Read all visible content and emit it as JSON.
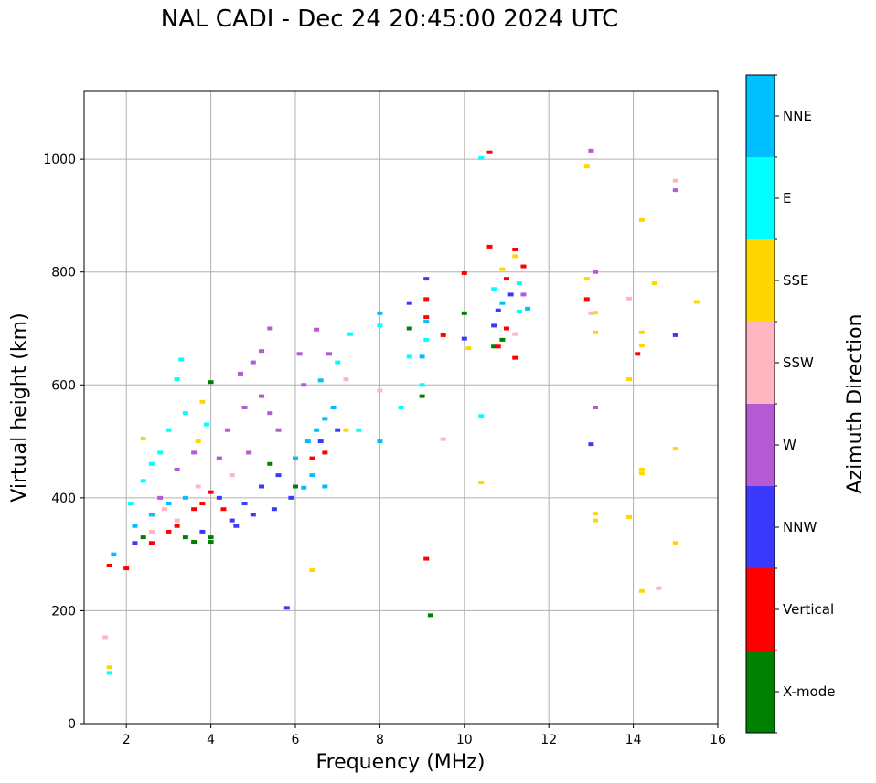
{
  "chart_data": {
    "type": "scatter",
    "title": "NAL CADI - Dec 24 20:45:00 2024 UTC",
    "xlabel": "Frequency (MHz)",
    "ylabel": "Virtual height (km)",
    "xlim": [
      1,
      16
    ],
    "ylim": [
      0,
      1120
    ],
    "xticks": [
      2,
      4,
      6,
      8,
      10,
      12,
      14,
      16
    ],
    "yticks": [
      0,
      200,
      400,
      600,
      800,
      1000
    ],
    "grid": true,
    "colorbar": {
      "label": "Azimuth Direction",
      "categories": [
        {
          "name": "X-mode",
          "color": "#008000"
        },
        {
          "name": "Vertical",
          "color": "#ff0000"
        },
        {
          "name": "NNW",
          "color": "#3a3aff"
        },
        {
          "name": "W",
          "color": "#b45ad2"
        },
        {
          "name": "SSW",
          "color": "#ffb6c1"
        },
        {
          "name": "SSE",
          "color": "#ffd700"
        },
        {
          "name": "E",
          "color": "#00ffff"
        },
        {
          "name": "NNE",
          "color": "#00bfff"
        }
      ]
    },
    "series": [
      {
        "name": "X-mode",
        "points": [
          [
            9.2,
            192
          ],
          [
            4.0,
            605
          ],
          [
            4.0,
            322
          ],
          [
            4.0,
            330
          ],
          [
            10.7,
            668
          ],
          [
            10.0,
            727
          ],
          [
            8.7,
            700
          ],
          [
            3.4,
            330
          ],
          [
            3.6,
            322
          ],
          [
            2.4,
            330
          ],
          [
            9.0,
            580
          ],
          [
            10.9,
            680
          ],
          [
            5.4,
            460
          ],
          [
            6.0,
            420
          ]
        ]
      },
      {
        "name": "Vertical",
        "points": [
          [
            10.6,
            1012
          ],
          [
            10.6,
            845
          ],
          [
            11.4,
            810
          ],
          [
            11.0,
            788
          ],
          [
            12.9,
            752
          ],
          [
            11.0,
            700
          ],
          [
            10.8,
            668
          ],
          [
            11.2,
            648
          ],
          [
            14.1,
            655
          ],
          [
            9.1,
            752
          ],
          [
            9.1,
            720
          ],
          [
            9.5,
            688
          ],
          [
            9.1,
            292
          ],
          [
            4.0,
            410
          ],
          [
            4.3,
            380
          ],
          [
            3.8,
            390
          ],
          [
            2.0,
            275
          ],
          [
            1.6,
            280
          ],
          [
            2.6,
            320
          ],
          [
            3.0,
            340
          ],
          [
            3.2,
            350
          ],
          [
            6.4,
            470
          ],
          [
            6.7,
            480
          ],
          [
            11.2,
            840
          ],
          [
            10.0,
            798
          ],
          [
            3.6,
            380
          ]
        ]
      },
      {
        "name": "NNW",
        "points": [
          [
            5.8,
            205
          ],
          [
            10.0,
            682
          ],
          [
            10.7,
            705
          ],
          [
            10.8,
            732
          ],
          [
            11.1,
            760
          ],
          [
            15.0,
            688
          ],
          [
            13.0,
            495
          ],
          [
            9.1,
            788
          ],
          [
            8.7,
            745
          ],
          [
            5.5,
            380
          ],
          [
            5.0,
            370
          ],
          [
            4.5,
            360
          ],
          [
            4.8,
            390
          ],
          [
            5.2,
            420
          ],
          [
            4.2,
            400
          ],
          [
            5.6,
            440
          ],
          [
            6.6,
            500
          ],
          [
            7.0,
            520
          ],
          [
            3.8,
            340
          ],
          [
            2.2,
            320
          ],
          [
            4.6,
            350
          ],
          [
            5.9,
            400
          ]
        ]
      },
      {
        "name": "W",
        "points": [
          [
            13.1,
            800
          ],
          [
            13.1,
            560
          ],
          [
            15.0,
            945
          ],
          [
            13.0,
            1015
          ],
          [
            11.4,
            760
          ],
          [
            6.5,
            698
          ],
          [
            5.4,
            700
          ],
          [
            5.2,
            660
          ],
          [
            5.0,
            640
          ],
          [
            4.7,
            620
          ],
          [
            6.8,
            655
          ],
          [
            6.1,
            655
          ],
          [
            4.8,
            560
          ],
          [
            4.4,
            520
          ],
          [
            5.6,
            520
          ],
          [
            3.6,
            480
          ],
          [
            3.2,
            450
          ],
          [
            5.2,
            580
          ],
          [
            4.2,
            470
          ],
          [
            2.8,
            400
          ],
          [
            4.9,
            480
          ],
          [
            5.4,
            550
          ],
          [
            6.2,
            600
          ]
        ]
      },
      {
        "name": "SSW",
        "points": [
          [
            15.0,
            962
          ],
          [
            14.6,
            240
          ],
          [
            9.5,
            504
          ],
          [
            13.9,
            753
          ],
          [
            13.0,
            727
          ],
          [
            11.2,
            690
          ],
          [
            1.5,
            153
          ],
          [
            2.6,
            340
          ],
          [
            3.2,
            360
          ],
          [
            7.2,
            610
          ],
          [
            8.0,
            590
          ],
          [
            2.9,
            380
          ],
          [
            3.7,
            420
          ],
          [
            4.5,
            440
          ]
        ]
      },
      {
        "name": "SSE",
        "points": [
          [
            12.9,
            987
          ],
          [
            14.2,
            892
          ],
          [
            14.5,
            780
          ],
          [
            15.5,
            747
          ],
          [
            13.1,
            728
          ],
          [
            12.9,
            788
          ],
          [
            13.1,
            693
          ],
          [
            14.2,
            693
          ],
          [
            14.2,
            670
          ],
          [
            13.9,
            610
          ],
          [
            15.0,
            487
          ],
          [
            14.2,
            450
          ],
          [
            14.2,
            443
          ],
          [
            13.1,
            372
          ],
          [
            13.1,
            360
          ],
          [
            13.9,
            366
          ],
          [
            15.0,
            320
          ],
          [
            14.2,
            235
          ],
          [
            10.4,
            427
          ],
          [
            6.4,
            272
          ],
          [
            1.6,
            100
          ],
          [
            11.2,
            828
          ],
          [
            10.9,
            805
          ],
          [
            10.1,
            665
          ],
          [
            3.8,
            570
          ],
          [
            3.7,
            500
          ],
          [
            2.4,
            505
          ],
          [
            7.2,
            520
          ]
        ]
      },
      {
        "name": "E",
        "points": [
          [
            10.4,
            1002
          ],
          [
            10.4,
            545
          ],
          [
            8.5,
            560
          ],
          [
            8.7,
            650
          ],
          [
            9.0,
            600
          ],
          [
            9.1,
            680
          ],
          [
            11.3,
            730
          ],
          [
            10.7,
            770
          ],
          [
            11.3,
            780
          ],
          [
            3.3,
            645
          ],
          [
            3.2,
            610
          ],
          [
            3.4,
            550
          ],
          [
            3.0,
            520
          ],
          [
            2.8,
            480
          ],
          [
            2.6,
            460
          ],
          [
            2.4,
            430
          ],
          [
            3.9,
            530
          ],
          [
            2.1,
            390
          ],
          [
            1.6,
            90
          ],
          [
            7.3,
            690
          ],
          [
            7.0,
            640
          ],
          [
            8.0,
            705
          ],
          [
            7.5,
            520
          ]
        ]
      },
      {
        "name": "NNE",
        "points": [
          [
            9.1,
            712
          ],
          [
            8.0,
            727
          ],
          [
            8.0,
            500
          ],
          [
            6.9,
            560
          ],
          [
            6.7,
            540
          ],
          [
            6.5,
            520
          ],
          [
            6.3,
            500
          ],
          [
            6.7,
            420
          ],
          [
            6.4,
            440
          ],
          [
            6.0,
            470
          ],
          [
            6.6,
            608
          ],
          [
            9.0,
            650
          ],
          [
            10.9,
            745
          ],
          [
            11.5,
            735
          ],
          [
            1.7,
            300
          ],
          [
            2.2,
            350
          ],
          [
            2.6,
            370
          ],
          [
            3.0,
            390
          ],
          [
            3.4,
            400
          ],
          [
            6.2,
            418
          ]
        ]
      }
    ]
  }
}
